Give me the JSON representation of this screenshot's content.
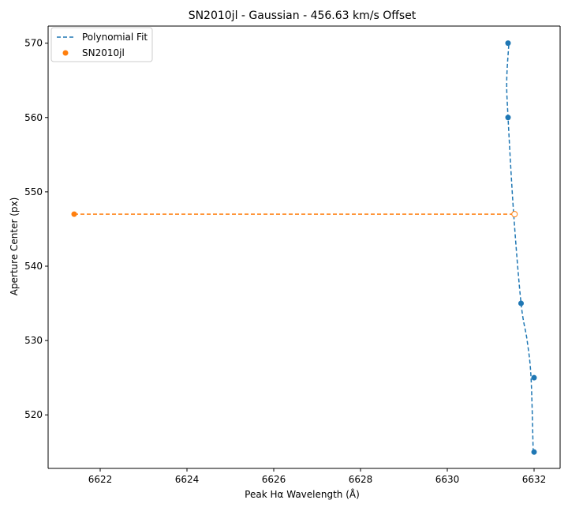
{
  "chart_data": {
    "type": "scatter",
    "title": "SN2010jl - Gaussian - 456.63 km/s Offset",
    "xlabel": "Peak Hα Wavelength (Å)",
    "ylabel": "Aperture Center (px)",
    "xlim": [
      6620.8,
      6632.6
    ],
    "ylim": [
      512.8,
      572.3
    ],
    "x_ticks": [
      6622,
      6624,
      6626,
      6628,
      6630,
      6632
    ],
    "y_ticks": [
      520,
      530,
      540,
      550,
      560,
      570
    ],
    "x_tick_labels": [
      "6622",
      "6624",
      "6626",
      "6628",
      "6630",
      "6632"
    ],
    "y_tick_labels": [
      "520",
      "530",
      "540",
      "550",
      "560",
      "570"
    ],
    "grid": false,
    "legend_position": "top-left",
    "legend": [
      {
        "label": "Polynomial Fit",
        "kind": "dashed-line",
        "color": "#1f77b4"
      },
      {
        "label": "SN2010jl",
        "kind": "point",
        "color": "#ff7f0e"
      }
    ],
    "series": [
      {
        "name": "Polynomial Fit",
        "kind": "curve",
        "color": "#1f77b4",
        "x": [
          6631.98,
          6631.93,
          6631.84,
          6631.7,
          6631.53,
          6631.4,
          6631.37,
          6631.42
        ],
        "y": [
          515,
          525,
          530,
          535,
          547,
          560,
          565,
          570
        ]
      },
      {
        "name": "",
        "kind": "points",
        "color": "#1f77b4",
        "x": [
          6631.4,
          6631.4,
          6631.7,
          6632.0,
          6632.0
        ],
        "y": [
          570,
          560,
          535,
          525,
          515
        ]
      },
      {
        "name": "",
        "kind": "dashed-line",
        "color": "#ff7f0e",
        "x": [
          6621.4,
          6631.55
        ],
        "y": [
          547,
          547
        ]
      },
      {
        "name": "SN2010jl",
        "kind": "points",
        "color": "#ff7f0e",
        "x": [
          6621.4
        ],
        "y": [
          547
        ]
      },
      {
        "name": "",
        "kind": "hollow-point",
        "color": "#ff7f0e",
        "x": [
          6631.55
        ],
        "y": [
          547
        ]
      }
    ]
  }
}
